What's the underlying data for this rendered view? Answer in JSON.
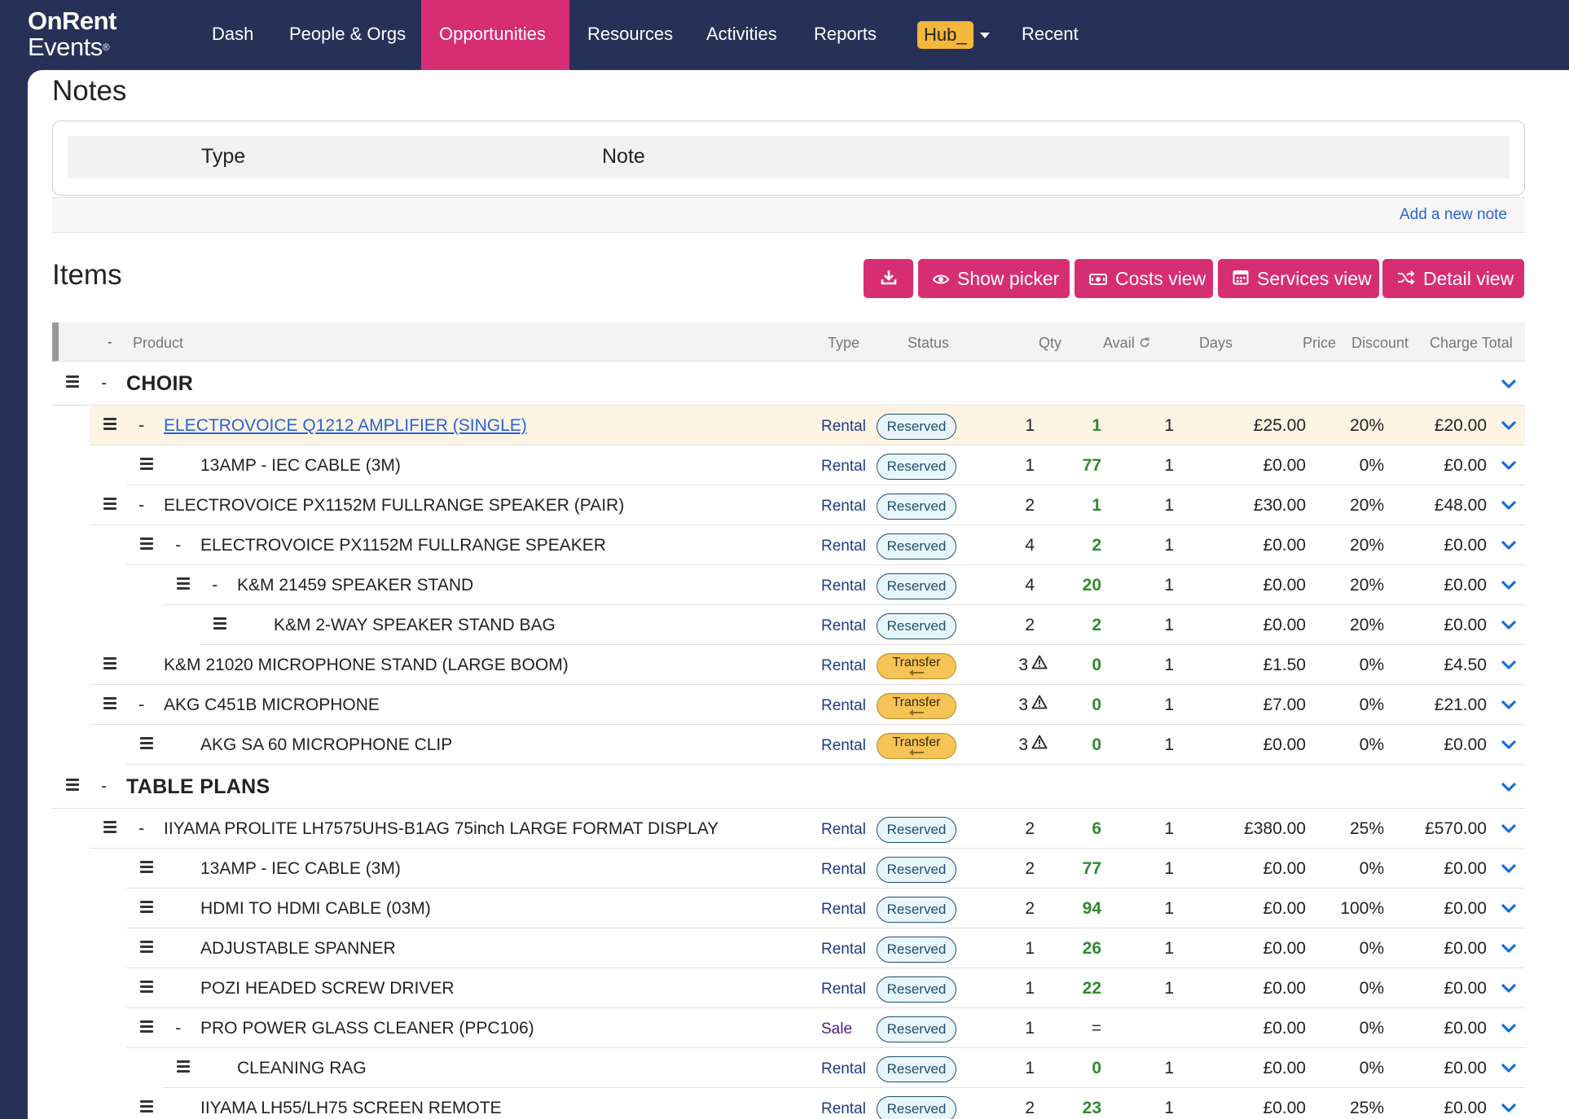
{
  "app": {
    "logo_line1": "OnRent",
    "logo_line2": "Events",
    "logo_mark": "®"
  },
  "nav": {
    "items": [
      {
        "label": "Dash",
        "active": false
      },
      {
        "label": "People & Orgs",
        "active": false
      },
      {
        "label": "Opportunities",
        "active": true
      },
      {
        "label": "Resources",
        "active": false
      },
      {
        "label": "Activities",
        "active": false
      },
      {
        "label": "Reports",
        "active": false
      },
      {
        "label": "Hub_",
        "active": false,
        "dropdown": true
      },
      {
        "label": "Recent",
        "active": false
      }
    ]
  },
  "notes": {
    "title": "Notes",
    "col_type": "Type",
    "col_note": "Note",
    "add_link": "Add a new note"
  },
  "items": {
    "title": "Items",
    "buttons": {
      "download_icon": "download-icon",
      "show_picker": "Show picker",
      "costs_view": "Costs view",
      "services_view": "Services view",
      "detail_view": "Detail view"
    },
    "columns": {
      "collapse": "-",
      "product": "Product",
      "type": "Type",
      "status": "Status",
      "qty": "Qty",
      "avail": "Avail",
      "days": "Days",
      "price": "Price",
      "discount": "Discount",
      "charge_total": "Charge Total"
    },
    "groups": [
      {
        "name": "CHOIR",
        "rows": [
          {
            "level": 1,
            "collapsible": true,
            "product": "ELECTROVOICE Q1212 AMPLIFIER (SINGLE)",
            "link": true,
            "highlight": true,
            "type": "Rental",
            "status": "Reserved",
            "qty": "1",
            "warn": false,
            "avail": "1",
            "days": "1",
            "price": "£25.00",
            "discount": "20%",
            "charge": "£20.00"
          },
          {
            "level": 2,
            "collapsible": false,
            "product": "13AMP - IEC CABLE (3M)",
            "type": "Rental",
            "status": "Reserved",
            "qty": "1",
            "warn": false,
            "avail": "77",
            "days": "1",
            "price": "£0.00",
            "discount": "0%",
            "charge": "£0.00"
          },
          {
            "level": 1,
            "collapsible": true,
            "product": "ELECTROVOICE PX1152M FULLRANGE SPEAKER (PAIR)",
            "type": "Rental",
            "status": "Reserved",
            "qty": "2",
            "warn": false,
            "avail": "1",
            "days": "1",
            "price": "£30.00",
            "discount": "20%",
            "charge": "£48.00"
          },
          {
            "level": 2,
            "collapsible": true,
            "product": "ELECTROVOICE PX1152M FULLRANGE SPEAKER",
            "type": "Rental",
            "status": "Reserved",
            "qty": "4",
            "warn": false,
            "avail": "2",
            "days": "1",
            "price": "£0.00",
            "discount": "20%",
            "charge": "£0.00"
          },
          {
            "level": 3,
            "collapsible": true,
            "product": "K&M 21459 SPEAKER STAND",
            "type": "Rental",
            "status": "Reserved",
            "qty": "4",
            "warn": false,
            "avail": "20",
            "days": "1",
            "price": "£0.00",
            "discount": "20%",
            "charge": "£0.00"
          },
          {
            "level": 4,
            "collapsible": false,
            "product": "K&M 2-WAY SPEAKER STAND BAG",
            "type": "Rental",
            "status": "Reserved",
            "qty": "2",
            "warn": false,
            "avail": "2",
            "days": "1",
            "price": "£0.00",
            "discount": "20%",
            "charge": "£0.00"
          },
          {
            "level": 1,
            "collapsible": false,
            "product": "K&M 21020 MICROPHONE STAND (LARGE BOOM)",
            "type": "Rental",
            "status": "Transfer",
            "qty": "3",
            "warn": true,
            "avail": "0",
            "days": "1",
            "price": "£1.50",
            "discount": "0%",
            "charge": "£4.50"
          },
          {
            "level": 1,
            "collapsible": true,
            "product": "AKG C451B MICROPHONE",
            "type": "Rental",
            "status": "Transfer",
            "qty": "3",
            "warn": true,
            "avail": "0",
            "days": "1",
            "price": "£7.00",
            "discount": "0%",
            "charge": "£21.00"
          },
          {
            "level": 2,
            "collapsible": false,
            "product": "AKG SA 60 MICROPHONE CLIP",
            "type": "Rental",
            "status": "Transfer",
            "qty": "3",
            "warn": true,
            "avail": "0",
            "days": "1",
            "price": "£0.00",
            "discount": "0%",
            "charge": "£0.00"
          }
        ]
      },
      {
        "name": "TABLE PLANS",
        "rows": [
          {
            "level": 1,
            "collapsible": true,
            "product": "IIYAMA PROLITE LH7575UHS-B1AG 75inch LARGE FORMAT DISPLAY",
            "type": "Rental",
            "status": "Reserved",
            "qty": "2",
            "warn": false,
            "avail": "6",
            "days": "1",
            "price": "£380.00",
            "discount": "25%",
            "charge": "£570.00"
          },
          {
            "level": 2,
            "collapsible": false,
            "product": "13AMP - IEC CABLE (3M)",
            "type": "Rental",
            "status": "Reserved",
            "qty": "2",
            "warn": false,
            "avail": "77",
            "days": "1",
            "price": "£0.00",
            "discount": "0%",
            "charge": "£0.00"
          },
          {
            "level": 2,
            "collapsible": false,
            "product": "HDMI TO HDMI CABLE (03M)",
            "type": "Rental",
            "status": "Reserved",
            "qty": "2",
            "warn": false,
            "avail": "94",
            "days": "1",
            "price": "£0.00",
            "discount": "100%",
            "charge": "£0.00"
          },
          {
            "level": 2,
            "collapsible": false,
            "product": "ADJUSTABLE SPANNER",
            "type": "Rental",
            "status": "Reserved",
            "qty": "1",
            "warn": false,
            "avail": "26",
            "days": "1",
            "price": "£0.00",
            "discount": "0%",
            "charge": "£0.00"
          },
          {
            "level": 2,
            "collapsible": false,
            "product": "POZI HEADED SCREW DRIVER",
            "type": "Rental",
            "status": "Reserved",
            "qty": "1",
            "warn": false,
            "avail": "22",
            "days": "1",
            "price": "£0.00",
            "discount": "0%",
            "charge": "£0.00"
          },
          {
            "level": 2,
            "collapsible": true,
            "product": "PRO POWER GLASS CLEANER (PPC106)",
            "type": "Sale",
            "status": "Reserved",
            "qty": "1",
            "warn": false,
            "avail": "=",
            "days": "",
            "price": "£0.00",
            "discount": "0%",
            "charge": "£0.00"
          },
          {
            "level": 3,
            "collapsible": false,
            "product": "CLEANING RAG",
            "type": "Rental",
            "status": "Reserved",
            "qty": "1",
            "warn": false,
            "avail": "0",
            "days": "1",
            "price": "£0.00",
            "discount": "0%",
            "charge": "£0.00"
          },
          {
            "level": 2,
            "collapsible": false,
            "product": "IIYAMA LH55/LH75 SCREEN REMOTE",
            "type": "Rental",
            "status": "Reserved",
            "qty": "2",
            "warn": false,
            "avail": "23",
            "days": "1",
            "price": "£0.00",
            "discount": "25%",
            "charge": "£0.00"
          }
        ]
      }
    ]
  },
  "colors": {
    "nav_bg": "#273057",
    "accent": "#d72e73",
    "hub_pill": "#f3b73a",
    "link": "#2a62d6",
    "avail_green": "#2f8a2f",
    "reserved_border": "#1e4f6e",
    "transfer_fill": "#f5c356"
  }
}
